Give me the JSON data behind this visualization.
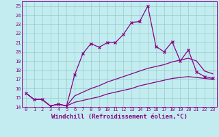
{
  "title": "",
  "xlabel": "Windchill (Refroidissement éolien,°C)",
  "bg_color": "#c2ecef",
  "line_color": "#880088",
  "grid_color": "#99cccc",
  "xlim": [
    -0.5,
    23.5
  ],
  "ylim": [
    14,
    25.5
  ],
  "xticks": [
    0,
    1,
    2,
    3,
    4,
    5,
    6,
    7,
    8,
    9,
    10,
    11,
    12,
    13,
    14,
    15,
    16,
    17,
    18,
    19,
    20,
    21,
    22,
    23
  ],
  "yticks": [
    14,
    15,
    16,
    17,
    18,
    19,
    20,
    21,
    22,
    23,
    24,
    25
  ],
  "line1_x": [
    0,
    1,
    2,
    3,
    4,
    5,
    6,
    7,
    8,
    9,
    10,
    11,
    12,
    13,
    14,
    15,
    16,
    17,
    18,
    19,
    20,
    21,
    22,
    23
  ],
  "line1_y": [
    15.5,
    14.8,
    14.8,
    14.1,
    14.3,
    14.1,
    17.5,
    19.8,
    20.9,
    20.5,
    21.0,
    21.0,
    21.9,
    23.2,
    23.3,
    25.0,
    20.6,
    20.0,
    21.1,
    19.0,
    20.2,
    17.8,
    17.3,
    17.1
  ],
  "line2_x": [
    0,
    1,
    2,
    3,
    4,
    5,
    6,
    7,
    8,
    9,
    10,
    11,
    12,
    13,
    14,
    15,
    16,
    17,
    18,
    19,
    20,
    21,
    22,
    23
  ],
  "line2_y": [
    15.5,
    14.8,
    14.8,
    14.1,
    14.3,
    14.1,
    15.2,
    15.6,
    16.0,
    16.3,
    16.7,
    17.0,
    17.3,
    17.6,
    17.9,
    18.2,
    18.4,
    18.6,
    18.9,
    19.1,
    19.3,
    19.0,
    17.9,
    17.6
  ],
  "line3_x": [
    0,
    1,
    2,
    3,
    4,
    5,
    6,
    7,
    8,
    9,
    10,
    11,
    12,
    13,
    14,
    15,
    16,
    17,
    18,
    19,
    20,
    21,
    22,
    23
  ],
  "line3_y": [
    15.5,
    14.8,
    14.8,
    14.1,
    14.3,
    14.1,
    14.5,
    14.7,
    14.9,
    15.1,
    15.4,
    15.6,
    15.8,
    16.0,
    16.3,
    16.5,
    16.7,
    16.9,
    17.1,
    17.2,
    17.3,
    17.2,
    17.1,
    17.0
  ],
  "marker": "x",
  "markersize": 3,
  "linewidth": 0.9,
  "tick_fontsize": 5,
  "xlabel_fontsize": 6.5
}
